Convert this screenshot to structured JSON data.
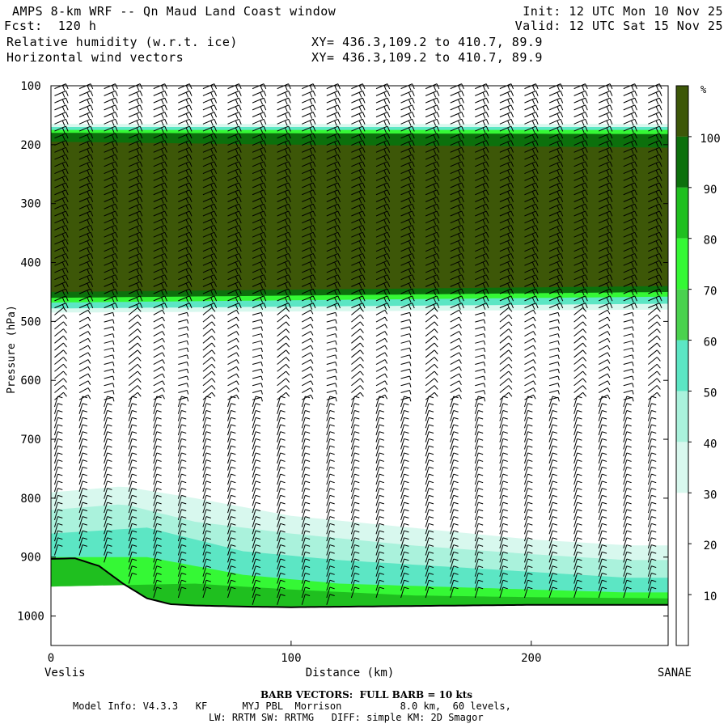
{
  "header": {
    "title": "AMPS 8-km WRF -- Qn Maud Land Coast window",
    "fcst": "Fcst:  120 h",
    "init": "Init: 12 UTC Mon 10 Nov 25",
    "valid": "Valid: 12 UTC Sat 15 Nov 25",
    "field1": "Relative humidity (w.r.t. ice)",
    "field2": "Horizontal wind vectors",
    "xy1": "XY= 436.3,109.2 to 410.7, 89.9",
    "xy2": "XY= 436.3,109.2 to 410.7, 89.9"
  },
  "chart_data": {
    "type": "heatmap",
    "title": "Relative humidity (w.r.t. ice)",
    "xlabel": "Distance (km)",
    "ylabel": "Pressure (hPa)",
    "xlim": [
      0,
      257
    ],
    "ylim": [
      1050,
      100
    ],
    "x_ticks": [
      0,
      100,
      200
    ],
    "y_ticks": [
      100,
      200,
      300,
      400,
      500,
      600,
      700,
      800,
      900,
      1000
    ],
    "x_end_labels": {
      "left": "Veslis",
      "right": "SANAE"
    },
    "colorbar": {
      "unit": "%",
      "ticks": [
        10,
        20,
        30,
        40,
        50,
        60,
        70,
        80,
        90,
        100
      ],
      "colors": [
        "#ffffff",
        "#ffffff",
        "#ffffff",
        "#d8f8ee",
        "#aaf2dc",
        "#5ce6c4",
        "#4ad24e",
        "#35f835",
        "#1fbf1f",
        "#0c700c",
        "#3d5708"
      ]
    },
    "terrain_pressure": [
      [
        0,
        903
      ],
      [
        10,
        902
      ],
      [
        20,
        915
      ],
      [
        30,
        945
      ],
      [
        40,
        970
      ],
      [
        50,
        980
      ],
      [
        60,
        982
      ],
      [
        80,
        984
      ],
      [
        100,
        985
      ],
      [
        150,
        983
      ],
      [
        200,
        981
      ],
      [
        257,
        981
      ]
    ],
    "rh_layers": [
      {
        "rh": 30,
        "top": [
          [
            0,
            165
          ],
          [
            257,
            165
          ]
        ],
        "bottom": [
          [
            0,
            485
          ],
          [
            257,
            480
          ]
        ]
      },
      {
        "rh": 50,
        "top": [
          [
            0,
            170
          ],
          [
            257,
            170
          ]
        ],
        "bottom": [
          [
            0,
            478
          ],
          [
            257,
            470
          ]
        ]
      },
      {
        "rh": 70,
        "top": [
          [
            0,
            175
          ],
          [
            257,
            175
          ]
        ],
        "bottom": [
          [
            0,
            468
          ],
          [
            257,
            458
          ]
        ]
      },
      {
        "rh": 90,
        "top": [
          [
            0,
            180
          ],
          [
            257,
            182
          ]
        ],
        "bottom": [
          [
            0,
            460
          ],
          [
            257,
            450
          ]
        ]
      },
      {
        "rh": 100,
        "top": [
          [
            0,
            195
          ],
          [
            100,
            200
          ],
          [
            257,
            205
          ]
        ],
        "bottom": [
          [
            0,
            450
          ],
          [
            257,
            440
          ]
        ]
      }
    ],
    "low_moist": [
      {
        "rh": 30,
        "top": [
          [
            0,
            790
          ],
          [
            30,
            780
          ],
          [
            60,
            800
          ],
          [
            100,
            830
          ],
          [
            150,
            850
          ],
          [
            200,
            870
          ],
          [
            240,
            880
          ],
          [
            257,
            880
          ]
        ]
      },
      {
        "rh": 40,
        "top": [
          [
            0,
            820
          ],
          [
            30,
            810
          ],
          [
            60,
            840
          ],
          [
            100,
            860
          ],
          [
            150,
            880
          ],
          [
            200,
            895
          ],
          [
            240,
            905
          ],
          [
            257,
            905
          ]
        ]
      },
      {
        "rh": 50,
        "top": [
          [
            0,
            860
          ],
          [
            40,
            850
          ],
          [
            80,
            890
          ],
          [
            120,
            905
          ],
          [
            160,
            915
          ],
          [
            200,
            925
          ],
          [
            240,
            935
          ],
          [
            257,
            935
          ]
        ]
      },
      {
        "rh": 70,
        "top": [
          [
            0,
            900
          ],
          [
            40,
            900
          ],
          [
            80,
            930
          ],
          [
            120,
            945
          ],
          [
            160,
            950
          ],
          [
            200,
            955
          ],
          [
            240,
            960
          ],
          [
            257,
            960
          ]
        ]
      },
      {
        "rh": 80,
        "top": [
          [
            0,
            950
          ],
          [
            60,
            945
          ],
          [
            100,
            955
          ],
          [
            150,
            965
          ],
          [
            200,
            968
          ],
          [
            257,
            970
          ]
        ]
      }
    ],
    "wind_barbs": "per-column barbs, full barb = 10 kts"
  },
  "barb_note": "BARB VECTORS:  FULL BARB = 10 kts",
  "model_info": "Model Info: V4.3.3   KF      MYJ PBL  Morrison          8.0 km,  60 levels,",
  "model_info2": "LW: RRTM SW: RRTMG   DIFF: simple KM: 2D Smagor"
}
